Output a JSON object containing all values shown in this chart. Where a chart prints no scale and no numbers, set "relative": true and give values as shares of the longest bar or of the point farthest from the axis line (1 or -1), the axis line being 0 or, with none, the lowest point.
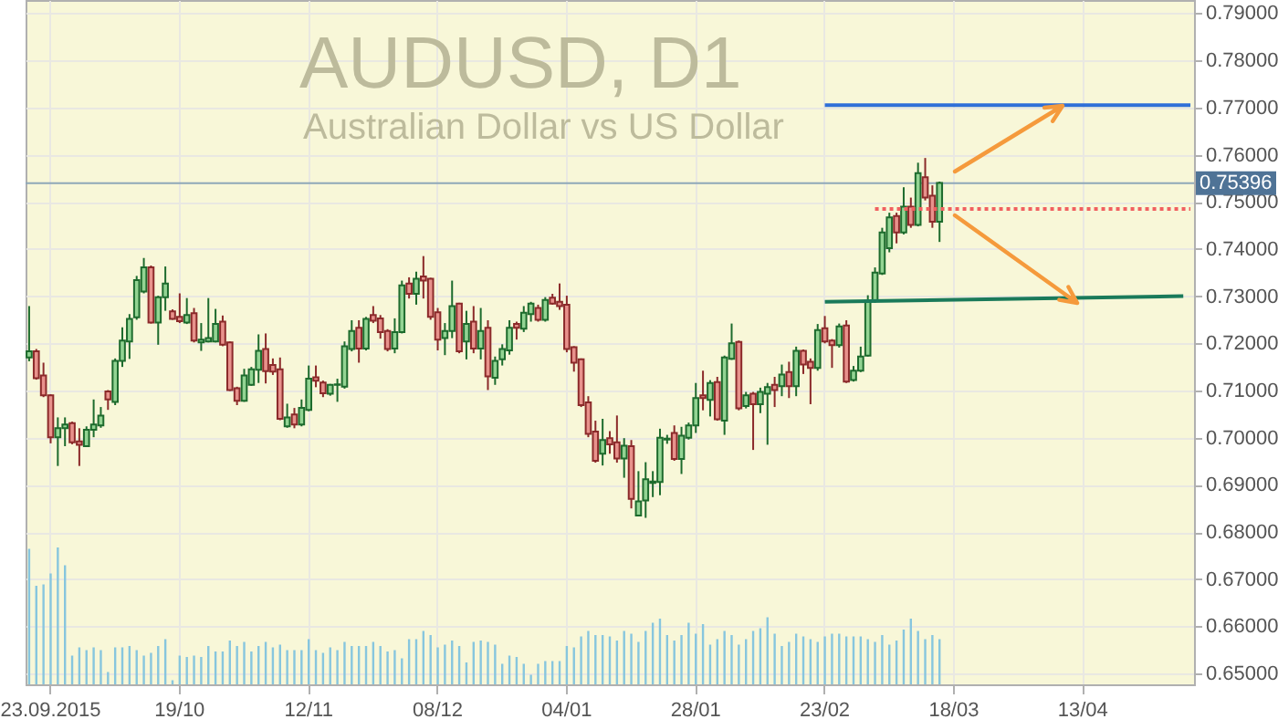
{
  "chart_data": [
    {
      "type": "candlestick",
      "title": "AUDUSD, D1",
      "subtitle": "Australian Dollar vs US Dollar",
      "categories": [
        null,
        null,
        null,
        "23.09.2015",
        null,
        null,
        null,
        null,
        null,
        null,
        null,
        null,
        null,
        null,
        null,
        null,
        null,
        null,
        null,
        null,
        null,
        "19/10",
        null,
        null,
        null,
        null,
        null,
        null,
        null,
        null,
        null,
        null,
        null,
        null,
        null,
        null,
        null,
        null,
        null,
        "12/11",
        null,
        null,
        null,
        null,
        null,
        null,
        null,
        null,
        null,
        null,
        null,
        null,
        null,
        null,
        null,
        null,
        null,
        "08/12",
        null,
        null,
        null,
        null,
        null,
        null,
        null,
        null,
        null,
        null,
        null,
        null,
        null,
        null,
        null,
        null,
        null,
        "04/01",
        null,
        null,
        null,
        null,
        null,
        null,
        null,
        null,
        null,
        null,
        null,
        null,
        null,
        null,
        null,
        null,
        null,
        "28/01",
        null,
        null,
        null,
        null,
        null,
        null,
        null,
        null,
        null,
        null,
        null,
        null,
        null,
        null,
        null,
        null,
        null,
        "23/02",
        null,
        null,
        null,
        null,
        null,
        null,
        null,
        null,
        null,
        null,
        null,
        null,
        null,
        null,
        null,
        null,
        null,
        "18/03",
        null,
        null,
        null,
        null,
        null,
        null,
        null,
        null,
        null,
        null,
        null,
        null,
        null,
        null,
        null,
        null,
        null,
        "13/04",
        null,
        null,
        null,
        null,
        null,
        null,
        null,
        null,
        null,
        null,
        null,
        null,
        null,
        null,
        null
      ],
      "ohlc": [
        [
          0.717,
          0.7279,
          0.7162,
          0.7183
        ],
        [
          0.7183,
          0.7188,
          0.7123,
          0.7126
        ],
        [
          0.7132,
          0.7159,
          0.7086,
          0.709
        ],
        [
          0.709,
          0.7092,
          0.6988,
          0.7001
        ],
        [
          0.7001,
          0.7043,
          0.694,
          0.702
        ],
        [
          0.702,
          0.7043,
          0.6982,
          0.7028
        ],
        [
          0.7031,
          0.7034,
          0.6986,
          0.699
        ],
        [
          0.6992,
          0.702,
          0.694,
          0.6985
        ],
        [
          0.6982,
          0.7024,
          0.698,
          0.7017
        ],
        [
          0.7017,
          0.7081,
          0.7001,
          0.7028
        ],
        [
          0.7026,
          0.7065,
          0.7021,
          0.7047
        ],
        [
          0.7098,
          0.7101,
          0.7059,
          0.7081
        ],
        [
          0.7076,
          0.7168,
          0.7069,
          0.7163
        ],
        [
          0.7163,
          0.7234,
          0.715,
          0.7206
        ],
        [
          0.7204,
          0.7262,
          0.7167,
          0.7252
        ],
        [
          0.7255,
          0.7343,
          0.725,
          0.7334
        ],
        [
          0.731,
          0.7381,
          0.7306,
          0.7361
        ],
        [
          0.7361,
          0.7365,
          0.7242,
          0.7244
        ],
        [
          0.7244,
          0.7301,
          0.7197,
          0.7298
        ],
        [
          0.7298,
          0.7363,
          0.7269,
          0.7327
        ],
        [
          0.7268,
          0.7272,
          0.725,
          0.7252
        ],
        [
          0.7256,
          0.7306,
          0.7243,
          0.7247
        ],
        [
          0.7244,
          0.7296,
          0.7241,
          0.726
        ],
        [
          0.7264,
          0.7275,
          0.7202,
          0.7206
        ],
        [
          0.7202,
          0.7243,
          0.7184,
          0.7208
        ],
        [
          0.7204,
          0.7296,
          0.7202,
          0.7211
        ],
        [
          0.7204,
          0.7273,
          0.7202,
          0.7241
        ],
        [
          0.7246,
          0.7259,
          0.7194,
          0.7197
        ],
        [
          0.7202,
          0.7204,
          0.7099,
          0.7101
        ],
        [
          0.7105,
          0.7108,
          0.7069,
          0.7078
        ],
        [
          0.7078,
          0.7146,
          0.7076,
          0.7132
        ],
        [
          0.7112,
          0.715,
          0.711,
          0.7145
        ],
        [
          0.7144,
          0.7219,
          0.7116,
          0.7184
        ],
        [
          0.7188,
          0.7221,
          0.7115,
          0.7141
        ],
        [
          0.7154,
          0.7168,
          0.7133,
          0.714
        ],
        [
          0.7145,
          0.717,
          0.7037,
          0.704
        ],
        [
          0.7024,
          0.7072,
          0.7021,
          0.7043
        ],
        [
          0.7049,
          0.7063,
          0.702,
          0.7028
        ],
        [
          0.7028,
          0.7081,
          0.7024,
          0.7063
        ],
        [
          0.7059,
          0.7153,
          0.7056,
          0.7125
        ],
        [
          0.7128,
          0.7153,
          0.7107,
          0.7121
        ],
        [
          0.7117,
          0.7121,
          0.7086,
          0.7094
        ],
        [
          0.7093,
          0.7114,
          0.7089,
          0.7112
        ],
        [
          0.7112,
          0.7125,
          0.7076,
          0.7113
        ],
        [
          0.7108,
          0.7204,
          0.7104,
          0.7194
        ],
        [
          0.7188,
          0.7249,
          0.7183,
          0.7226
        ],
        [
          0.7233,
          0.7249,
          0.7159,
          0.7189
        ],
        [
          0.7189,
          0.7256,
          0.7185,
          0.7252
        ],
        [
          0.726,
          0.7279,
          0.7243,
          0.7248
        ],
        [
          0.7253,
          0.726,
          0.721,
          0.7224
        ],
        [
          0.7226,
          0.723,
          0.7183,
          0.7188
        ],
        [
          0.7189,
          0.7253,
          0.7179,
          0.7224
        ],
        [
          0.7224,
          0.7333,
          0.7221,
          0.7323
        ],
        [
          0.7327,
          0.734,
          0.7295,
          0.7305
        ],
        [
          0.7305,
          0.7352,
          0.7282,
          0.7337
        ],
        [
          0.7342,
          0.7385,
          0.7295,
          0.7333
        ],
        [
          0.7337,
          0.7339,
          0.725,
          0.7256
        ],
        [
          0.7266,
          0.7275,
          0.7185,
          0.7208
        ],
        [
          0.7211,
          0.7243,
          0.7175,
          0.7226
        ],
        [
          0.7226,
          0.7333,
          0.7211,
          0.7279
        ],
        [
          0.7284,
          0.7286,
          0.7179,
          0.7183
        ],
        [
          0.7204,
          0.7269,
          0.7166,
          0.7241
        ],
        [
          0.7246,
          0.7279,
          0.7179,
          0.7189
        ],
        [
          0.7189,
          0.7275,
          0.7166,
          0.7226
        ],
        [
          0.7233,
          0.7249,
          0.7101,
          0.713
        ],
        [
          0.7127,
          0.7172,
          0.7112,
          0.7163
        ],
        [
          0.7166,
          0.7198,
          0.7153,
          0.7188
        ],
        [
          0.7185,
          0.7249,
          0.7176,
          0.7233
        ],
        [
          0.7241,
          0.7246,
          0.7208,
          0.7233
        ],
        [
          0.7231,
          0.7279,
          0.7224,
          0.7265
        ],
        [
          0.7262,
          0.7288,
          0.7246,
          0.7284
        ],
        [
          0.7275,
          0.7282,
          0.7246,
          0.725
        ],
        [
          0.725,
          0.7298,
          0.7246,
          0.7292
        ],
        [
          0.7297,
          0.7305,
          0.7282,
          0.7284
        ],
        [
          0.7288,
          0.7327,
          0.7271,
          0.7279
        ],
        [
          0.7282,
          0.7301,
          0.7181,
          0.7188
        ],
        [
          0.7192,
          0.7194,
          0.714,
          0.7159
        ],
        [
          0.7166,
          0.7168,
          0.7065,
          0.7069
        ],
        [
          0.7075,
          0.7088,
          0.7001,
          0.7008
        ],
        [
          0.7013,
          0.7036,
          0.6947,
          0.6951
        ],
        [
          0.6966,
          0.704,
          0.6941,
          0.6995
        ],
        [
          0.6999,
          0.7014,
          0.6966,
          0.6986
        ],
        [
          0.699,
          0.7047,
          0.6947,
          0.6956
        ],
        [
          0.6956,
          0.6999,
          0.6915,
          0.6983
        ],
        [
          0.6982,
          0.6995,
          0.685,
          0.687
        ],
        [
          0.6835,
          0.6929,
          0.6833,
          0.6865
        ],
        [
          0.6867,
          0.6948,
          0.683,
          0.6912
        ],
        [
          0.6904,
          0.6929,
          0.6874,
          0.6907
        ],
        [
          0.6906,
          0.7019,
          0.6878,
          0.7
        ],
        [
          0.6996,
          0.7006,
          0.6987,
          0.6998
        ],
        [
          0.701,
          0.7026,
          0.6951,
          0.6955
        ],
        [
          0.6955,
          0.7023,
          0.6923,
          0.7004
        ],
        [
          0.7,
          0.7032,
          0.6996,
          0.7026
        ],
        [
          0.7026,
          0.7116,
          0.701,
          0.7084
        ],
        [
          0.709,
          0.7142,
          0.7058,
          0.7084
        ],
        [
          0.708,
          0.7122,
          0.7045,
          0.7116
        ],
        [
          0.7118,
          0.7129,
          0.7036,
          0.7039
        ],
        [
          0.7036,
          0.7174,
          0.7006,
          0.717
        ],
        [
          0.7167,
          0.7242,
          0.7165,
          0.72
        ],
        [
          0.7203,
          0.7206,
          0.7058,
          0.7062
        ],
        [
          0.7067,
          0.7097,
          0.7062,
          0.709
        ],
        [
          0.7093,
          0.7097,
          0.6974,
          0.7071
        ],
        [
          0.7071,
          0.7106,
          0.7052,
          0.7097
        ],
        [
          0.7093,
          0.7116,
          0.6985,
          0.7107
        ],
        [
          0.7112,
          0.7129,
          0.7065,
          0.7101
        ],
        [
          0.7109,
          0.7155,
          0.7088,
          0.7134
        ],
        [
          0.7139,
          0.7161,
          0.7084,
          0.7109
        ],
        [
          0.7109,
          0.7193,
          0.7088,
          0.7184
        ],
        [
          0.7184,
          0.7187,
          0.7135,
          0.7155
        ],
        [
          0.7161,
          0.7168,
          0.7071,
          0.7148
        ],
        [
          0.7148,
          0.7241,
          0.7142,
          0.7228
        ],
        [
          0.7232,
          0.7258,
          0.72,
          0.7204
        ],
        [
          0.7206,
          0.7209,
          0.7148,
          0.7196
        ],
        [
          0.7196,
          0.7242,
          0.7191,
          0.7236
        ],
        [
          0.7238,
          0.7249,
          0.7116,
          0.7119
        ],
        [
          0.7122,
          0.7152,
          0.7119,
          0.7142
        ],
        [
          0.7142,
          0.7193,
          0.7139,
          0.7172
        ],
        [
          0.7174,
          0.7302,
          0.7172,
          0.729
        ],
        [
          0.729,
          0.7361,
          0.7286,
          0.735
        ],
        [
          0.7348,
          0.7445,
          0.7345,
          0.7435
        ],
        [
          0.7402,
          0.7477,
          0.7393,
          0.7467
        ],
        [
          0.747,
          0.7477,
          0.7412,
          0.7435
        ],
        [
          0.7435,
          0.7531,
          0.7431,
          0.749
        ],
        [
          0.749,
          0.7509,
          0.7445,
          0.7451
        ],
        [
          0.7451,
          0.7583,
          0.7448,
          0.7561
        ],
        [
          0.7552,
          0.7593,
          0.7503,
          0.7509
        ],
        [
          0.7513,
          0.7535,
          0.7445,
          0.7458
        ],
        [
          0.7458,
          0.7543,
          0.7415,
          0.754
        ],
        null,
        null,
        null,
        null,
        null,
        null,
        null,
        null,
        null,
        null,
        null,
        null,
        null,
        null,
        null,
        null,
        null,
        null,
        null,
        null,
        null,
        null,
        null,
        null,
        null,
        null,
        null,
        null,
        null,
        null,
        null,
        null,
        null,
        null,
        null
      ],
      "series": [
        {
          "type": "line",
          "color": "#2f6fd8",
          "values": [
            null,
            null,
            null,
            null,
            null,
            null,
            null,
            null,
            null,
            null,
            null,
            null,
            null,
            null,
            null,
            null,
            null,
            null,
            null,
            null,
            null,
            null,
            null,
            null,
            null,
            null,
            null,
            null,
            null,
            null,
            null,
            null,
            null,
            null,
            null,
            null,
            null,
            null,
            null,
            null,
            null,
            null,
            null,
            null,
            null,
            null,
            null,
            null,
            null,
            null,
            null,
            null,
            null,
            null,
            null,
            null,
            null,
            null,
            null,
            null,
            null,
            null,
            null,
            null,
            null,
            null,
            null,
            null,
            null,
            null,
            null,
            null,
            null,
            null,
            null,
            null,
            null,
            null,
            null,
            null,
            null,
            null,
            null,
            null,
            null,
            null,
            null,
            null,
            null,
            null,
            null,
            null,
            null,
            null,
            null,
            null,
            null,
            null,
            null,
            null,
            null,
            null,
            null,
            null,
            null,
            null,
            null,
            null,
            null,
            null,
            null,
            0.7705,
            null,
            null,
            null,
            null,
            null,
            null,
            null,
            null,
            null,
            null,
            null,
            null,
            null,
            null,
            null,
            null,
            null,
            null,
            null,
            null,
            null,
            null,
            null,
            null,
            null,
            null,
            null,
            null,
            null,
            null,
            null,
            null,
            null,
            null,
            null,
            null,
            null,
            null,
            null,
            null,
            null,
            null,
            null,
            null,
            null,
            null,
            null,
            null,
            null,
            null,
            0.7705
          ]
        },
        {
          "type": "line",
          "color": "#1a7a5a",
          "values": [
            null,
            null,
            null,
            null,
            null,
            null,
            null,
            null,
            null,
            null,
            null,
            null,
            null,
            null,
            null,
            null,
            null,
            null,
            null,
            null,
            null,
            null,
            null,
            null,
            null,
            null,
            null,
            null,
            null,
            null,
            null,
            null,
            null,
            null,
            null,
            null,
            null,
            null,
            null,
            null,
            null,
            null,
            null,
            null,
            null,
            null,
            null,
            null,
            null,
            null,
            null,
            null,
            null,
            null,
            null,
            null,
            null,
            null,
            null,
            null,
            null,
            null,
            null,
            null,
            null,
            null,
            null,
            null,
            null,
            null,
            null,
            null,
            null,
            null,
            null,
            null,
            null,
            null,
            null,
            null,
            null,
            null,
            null,
            null,
            null,
            null,
            null,
            null,
            null,
            null,
            null,
            null,
            null,
            null,
            null,
            null,
            null,
            null,
            null,
            null,
            null,
            null,
            null,
            null,
            null,
            null,
            null,
            null,
            null,
            null,
            null,
            0.7288,
            null,
            null,
            null,
            null,
            null,
            null,
            null,
            null,
            null,
            null,
            null,
            null,
            null,
            null,
            null,
            null,
            null,
            null,
            null,
            null,
            null,
            null,
            null,
            null,
            null,
            null,
            null,
            null,
            null,
            null,
            null,
            null,
            null,
            null,
            null,
            null,
            null,
            null,
            null,
            null,
            null,
            null,
            null,
            null,
            null,
            null,
            null,
            null,
            null,
            0.73,
            null
          ]
        },
        {
          "type": "line",
          "color": "#f06060",
          "line_style": "dotted",
          "values": [
            null,
            null,
            null,
            null,
            null,
            null,
            null,
            null,
            null,
            null,
            null,
            null,
            null,
            null,
            null,
            null,
            null,
            null,
            null,
            null,
            null,
            null,
            null,
            null,
            null,
            null,
            null,
            null,
            null,
            null,
            null,
            null,
            null,
            null,
            null,
            null,
            null,
            null,
            null,
            null,
            null,
            null,
            null,
            null,
            null,
            null,
            null,
            null,
            null,
            null,
            null,
            null,
            null,
            null,
            null,
            null,
            null,
            null,
            null,
            null,
            null,
            null,
            null,
            null,
            null,
            null,
            null,
            null,
            null,
            null,
            null,
            null,
            null,
            null,
            null,
            null,
            null,
            null,
            null,
            null,
            null,
            null,
            null,
            null,
            null,
            null,
            null,
            null,
            null,
            null,
            null,
            null,
            null,
            null,
            null,
            null,
            null,
            null,
            null,
            null,
            null,
            null,
            null,
            null,
            null,
            null,
            null,
            null,
            null,
            null,
            null,
            null,
            null,
            null,
            null,
            null,
            null,
            null,
            0.7485,
            null,
            null,
            null,
            null,
            null,
            null,
            null,
            null,
            null,
            null,
            null,
            null,
            null,
            null,
            null,
            null,
            null,
            null,
            null,
            null,
            null,
            null,
            null,
            null,
            null,
            null,
            null,
            null,
            null,
            null,
            null,
            null,
            null,
            null,
            null,
            null,
            null,
            null,
            null,
            null,
            null,
            null,
            null,
            0.7485
          ]
        }
      ],
      "ref_lines": [
        {
          "axis": "y",
          "value": 0.75396,
          "label": "0.75396",
          "color": "#8fa8b8"
        }
      ],
      "ylim": [
        0.6477,
        0.7928
      ],
      "yticks": [
        {
          "value": 0.65,
          "label": "0.65000"
        },
        {
          "value": 0.66,
          "label": "0.66000"
        },
        {
          "value": 0.67,
          "label": "0.67000"
        },
        {
          "value": 0.68,
          "label": "0.68000"
        },
        {
          "value": 0.69,
          "label": "0.69000"
        },
        {
          "value": 0.7,
          "label": "0.70000"
        },
        {
          "value": 0.71,
          "label": "0.71000"
        },
        {
          "value": 0.72,
          "label": "0.72000"
        },
        {
          "value": 0.73,
          "label": "0.73000"
        },
        {
          "value": 0.74,
          "label": "0.74000"
        },
        {
          "value": 0.75,
          "label": "0.75000"
        },
        {
          "value": 0.76,
          "label": "0.76000"
        },
        {
          "value": 0.77,
          "label": "0.77000"
        },
        {
          "value": 0.78,
          "label": "0.78000"
        },
        {
          "value": 0.79,
          "label": "0.79000"
        }
      ],
      "grid": true
    },
    {
      "type": "bar",
      "relative": true,
      "color": "#87c6de",
      "categories": [
        null,
        null,
        null,
        null,
        null,
        null,
        null,
        null,
        null,
        null,
        null,
        null,
        null,
        null,
        null,
        null,
        null,
        null,
        null,
        null,
        null,
        null,
        null,
        null,
        null,
        null,
        null,
        null,
        null,
        null,
        null,
        null,
        null,
        null,
        null,
        null,
        null,
        null,
        null,
        null,
        null,
        null,
        null,
        null,
        null,
        null,
        null,
        null,
        null,
        null,
        null,
        null,
        null,
        null,
        null,
        null,
        null,
        null,
        null,
        null,
        null,
        null,
        null,
        null,
        null,
        null,
        null,
        null,
        null,
        null,
        null,
        null,
        null,
        null,
        null,
        null,
        null,
        null,
        null,
        null,
        null,
        null,
        null,
        null,
        null,
        null,
        null,
        null,
        null,
        null,
        null,
        null,
        null,
        null,
        null,
        null,
        null,
        null,
        null,
        null,
        null,
        null,
        null,
        null,
        null,
        null,
        null,
        null,
        null,
        null,
        null,
        null,
        null,
        null,
        null,
        null,
        null,
        null,
        null,
        null,
        null,
        null,
        null,
        null,
        null,
        null,
        null,
        null,
        null,
        null,
        null,
        null,
        null,
        null,
        null,
        null,
        null,
        null,
        null,
        null,
        null,
        null,
        null,
        null,
        null,
        null,
        null,
        null,
        null,
        null,
        null,
        null,
        null,
        null,
        null,
        null,
        null,
        null,
        null,
        null,
        null,
        null,
        null
      ],
      "values": [
        0.99,
        0.72,
        0.73,
        0.81,
        1,
        0.87,
        0.21,
        0.27,
        0.25,
        0.27,
        0.25,
        0.09,
        0.27,
        0.27,
        0.28,
        0.25,
        0.21,
        0.23,
        0.28,
        0.33,
        0.03,
        0.21,
        0.2,
        0.21,
        0.2,
        0.28,
        0.24,
        0.24,
        0.32,
        0.28,
        0.31,
        0.24,
        0.28,
        0.31,
        0.27,
        0.29,
        0.25,
        0.25,
        0.25,
        0.33,
        0.25,
        0.23,
        0.27,
        0.25,
        0.31,
        0.28,
        0.28,
        0.28,
        0.31,
        0.28,
        0.24,
        0.25,
        0.19,
        0.33,
        0.33,
        0.39,
        0.36,
        0.27,
        0.29,
        0.32,
        0.28,
        0.16,
        0.31,
        0.32,
        0.31,
        0.29,
        0.15,
        0.21,
        0.2,
        0.15,
        0.07,
        0.15,
        0.17,
        0.17,
        0.17,
        0.28,
        0.27,
        0.35,
        0.39,
        0.36,
        0.36,
        0.35,
        0.32,
        0.39,
        0.37,
        0.31,
        0.39,
        0.45,
        0.48,
        0.36,
        0.32,
        0.36,
        0.45,
        0.37,
        0.44,
        0.29,
        0.33,
        0.39,
        0.36,
        0.29,
        0.33,
        0.39,
        0.41,
        0.49,
        0.37,
        0.28,
        0.31,
        0.37,
        0.35,
        0.33,
        0.31,
        0.35,
        0.37,
        0.37,
        0.35,
        0.35,
        0.35,
        0.33,
        0.31,
        0.36,
        0.29,
        0.32,
        0.4,
        0.48,
        0.39,
        0.33,
        0.36,
        0.33,
        null,
        null,
        null,
        null,
        null,
        null,
        null,
        null,
        null,
        null,
        null,
        null,
        null,
        null,
        null,
        null,
        null,
        null,
        null,
        null,
        null,
        null,
        null,
        null,
        null,
        null,
        null,
        null,
        null,
        null,
        null,
        null,
        null,
        null,
        null
      ]
    }
  ]
}
